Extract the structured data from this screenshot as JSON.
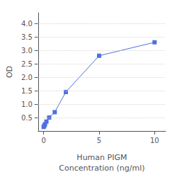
{
  "chart_data": {
    "type": "line",
    "xlabel": "Human PIGM\nConcentration (ng/ml)",
    "ylabel": "OD",
    "x": [
      0,
      0.0625,
      0.125,
      0.25,
      0.5,
      1,
      2,
      5,
      10
    ],
    "values": [
      0.15,
      0.2,
      0.25,
      0.35,
      0.5,
      0.7,
      1.45,
      2.8,
      3.3
    ],
    "marker": "square",
    "xlim": [
      -0.5,
      11
    ],
    "xticks": [
      0,
      5,
      10
    ],
    "ylim": [
      0,
      4.4
    ],
    "yticks": [
      0.5,
      {
        "value": 1,
        "label": "1.0"
      },
      1.5,
      {
        "value": 2,
        "label": "2.0"
      },
      2.5,
      {
        "value": 3,
        "label": "3.0"
      },
      3.5,
      {
        "value": 4,
        "label": "4.0"
      }
    ],
    "grid": true
  }
}
